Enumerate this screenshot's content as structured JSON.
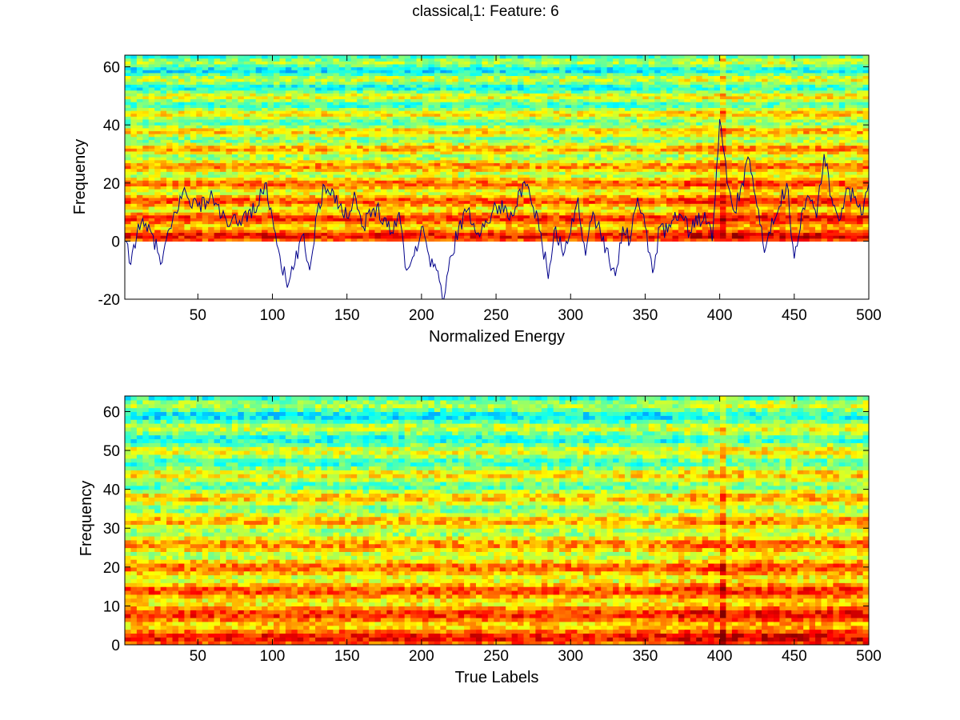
{
  "figure": {
    "title_main": "classical",
    "title_sub": "t",
    "title_rest": "1: Feature: 6"
  },
  "chart_data": [
    {
      "type": "heatmap",
      "name": "top-panel",
      "xlabel": "Normalized Energy",
      "ylabel": "Frequency",
      "xlim": [
        1,
        500
      ],
      "ylim": [
        -20,
        64
      ],
      "xticks": [
        50,
        100,
        150,
        200,
        250,
        300,
        350,
        400,
        450,
        500
      ],
      "yticks": [
        -20,
        0,
        20,
        40,
        60
      ],
      "heatmap": {
        "x_range": [
          1,
          500
        ],
        "y_range": [
          0,
          64
        ],
        "colormap": "jet"
      },
      "bands_hot": [
        2,
        5,
        8,
        11,
        14,
        17,
        20,
        23,
        26,
        29,
        32,
        38,
        41,
        44,
        47,
        50,
        56,
        59
      ],
      "line": {
        "color": "#00008b",
        "x_range": [
          1,
          500
        ],
        "description_points": [
          [
            1,
            0
          ],
          [
            5,
            -8
          ],
          [
            10,
            6
          ],
          [
            20,
            2
          ],
          [
            25,
            -8
          ],
          [
            35,
            10
          ],
          [
            40,
            17
          ],
          [
            50,
            12
          ],
          [
            60,
            15
          ],
          [
            70,
            5
          ],
          [
            80,
            8
          ],
          [
            90,
            12
          ],
          [
            95,
            20
          ],
          [
            100,
            8
          ],
          [
            105,
            -5
          ],
          [
            110,
            -16
          ],
          [
            115,
            -8
          ],
          [
            120,
            2
          ],
          [
            125,
            -10
          ],
          [
            130,
            10
          ],
          [
            135,
            19
          ],
          [
            140,
            18
          ],
          [
            145,
            12
          ],
          [
            150,
            8
          ],
          [
            155,
            17
          ],
          [
            160,
            5
          ],
          [
            170,
            12
          ],
          [
            180,
            3
          ],
          [
            185,
            10
          ],
          [
            190,
            -10
          ],
          [
            195,
            -5
          ],
          [
            200,
            5
          ],
          [
            205,
            -5
          ],
          [
            210,
            -10
          ],
          [
            215,
            -20
          ],
          [
            220,
            -5
          ],
          [
            225,
            5
          ],
          [
            230,
            10
          ],
          [
            240,
            3
          ],
          [
            250,
            12
          ],
          [
            260,
            10
          ],
          [
            270,
            19
          ],
          [
            280,
            3
          ],
          [
            285,
            -13
          ],
          [
            290,
            5
          ],
          [
            295,
            -5
          ],
          [
            300,
            3
          ],
          [
            305,
            15
          ],
          [
            310,
            -5
          ],
          [
            315,
            10
          ],
          [
            320,
            3
          ],
          [
            330,
            -12
          ],
          [
            335,
            5
          ],
          [
            340,
            0
          ],
          [
            345,
            15
          ],
          [
            350,
            5
          ],
          [
            355,
            -11
          ],
          [
            360,
            5
          ],
          [
            365,
            3
          ],
          [
            370,
            10
          ],
          [
            375,
            8
          ],
          [
            380,
            3
          ],
          [
            390,
            10
          ],
          [
            395,
            0
          ],
          [
            400,
            42
          ],
          [
            405,
            20
          ],
          [
            410,
            10
          ],
          [
            415,
            20
          ],
          [
            420,
            28
          ],
          [
            425,
            12
          ],
          [
            430,
            -4
          ],
          [
            435,
            8
          ],
          [
            440,
            12
          ],
          [
            445,
            20
          ],
          [
            450,
            -6
          ],
          [
            455,
            10
          ],
          [
            460,
            15
          ],
          [
            465,
            8
          ],
          [
            470,
            30
          ],
          [
            475,
            15
          ],
          [
            480,
            7
          ],
          [
            485,
            18
          ],
          [
            490,
            15
          ],
          [
            495,
            9
          ],
          [
            500,
            20
          ]
        ]
      }
    },
    {
      "type": "heatmap",
      "name": "bottom-panel",
      "xlabel": "True Labels",
      "ylabel": "Frequency",
      "xlim": [
        1,
        500
      ],
      "ylim": [
        0,
        64
      ],
      "xticks": [
        50,
        100,
        150,
        200,
        250,
        300,
        350,
        400,
        450,
        500
      ],
      "yticks": [
        0,
        10,
        20,
        30,
        40,
        50,
        60
      ],
      "heatmap": {
        "x_range": [
          1,
          500
        ],
        "y_range": [
          0,
          64
        ],
        "colormap": "jet"
      }
    }
  ]
}
